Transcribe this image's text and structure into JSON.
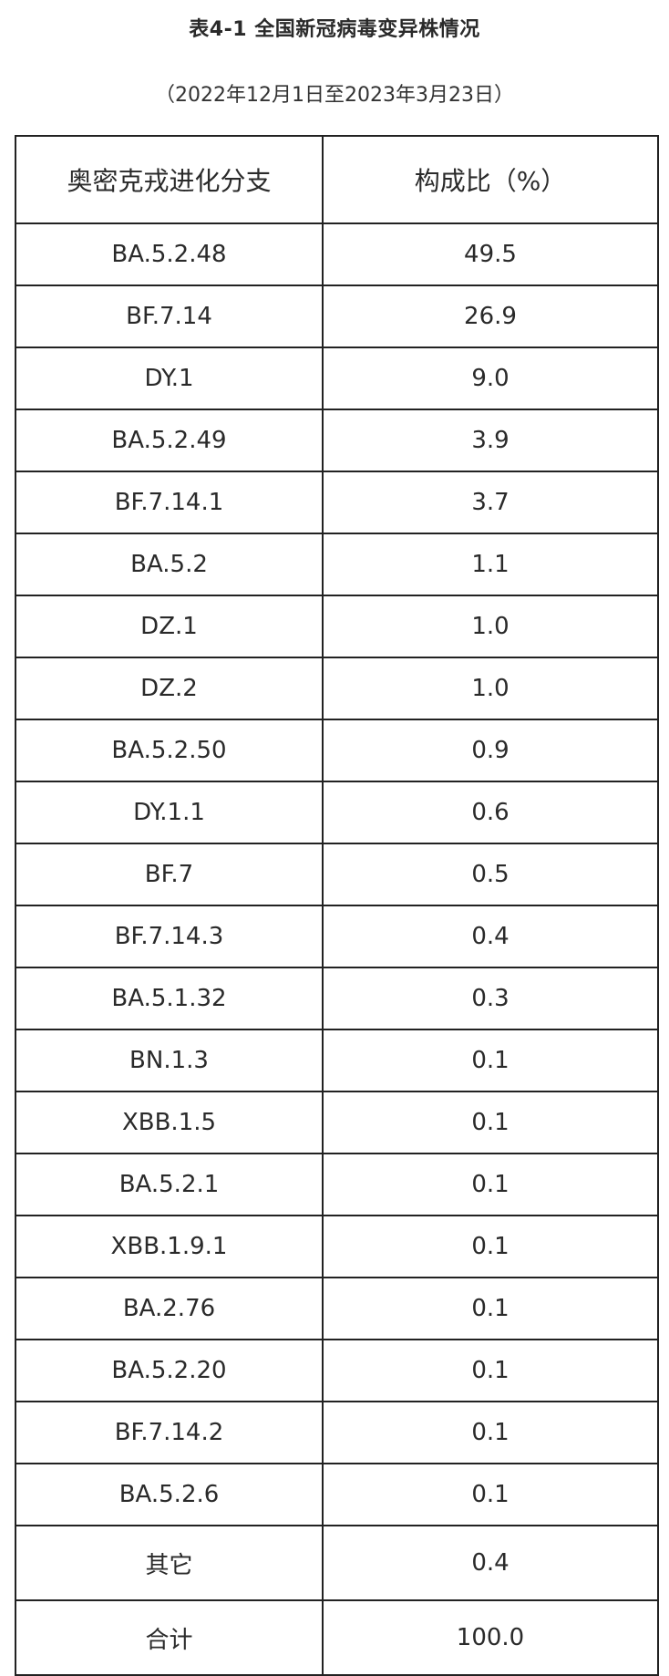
{
  "title": "表4-1 全国新冠病毒变异株情况",
  "subtitle": "（2022年12月1日至2023年3月23日）",
  "table": {
    "headers": [
      "奥密克戎进化分支",
      "构成比（%）"
    ],
    "rows": [
      [
        "BA.5.2.48",
        "49.5"
      ],
      [
        "BF.7.14",
        "26.9"
      ],
      [
        "DY.1",
        "9.0"
      ],
      [
        "BA.5.2.49",
        "3.9"
      ],
      [
        "BF.7.14.1",
        "3.7"
      ],
      [
        "BA.5.2",
        "1.1"
      ],
      [
        "DZ.1",
        "1.0"
      ],
      [
        "DZ.2",
        "1.0"
      ],
      [
        "BA.5.2.50",
        "0.9"
      ],
      [
        "DY.1.1",
        "0.6"
      ],
      [
        "BF.7",
        "0.5"
      ],
      [
        "BF.7.14.3",
        "0.4"
      ],
      [
        "BA.5.1.32",
        "0.3"
      ],
      [
        "BN.1.3",
        "0.1"
      ],
      [
        "XBB.1.5",
        "0.1"
      ],
      [
        "BA.5.2.1",
        "0.1"
      ],
      [
        "XBB.1.9.1",
        "0.1"
      ],
      [
        "BA.2.76",
        "0.1"
      ],
      [
        "BA.5.2.20",
        "0.1"
      ],
      [
        "BF.7.14.2",
        "0.1"
      ],
      [
        "BA.5.2.6",
        "0.1"
      ],
      [
        "其它",
        "0.4"
      ],
      [
        "合计",
        "100.0"
      ]
    ]
  }
}
